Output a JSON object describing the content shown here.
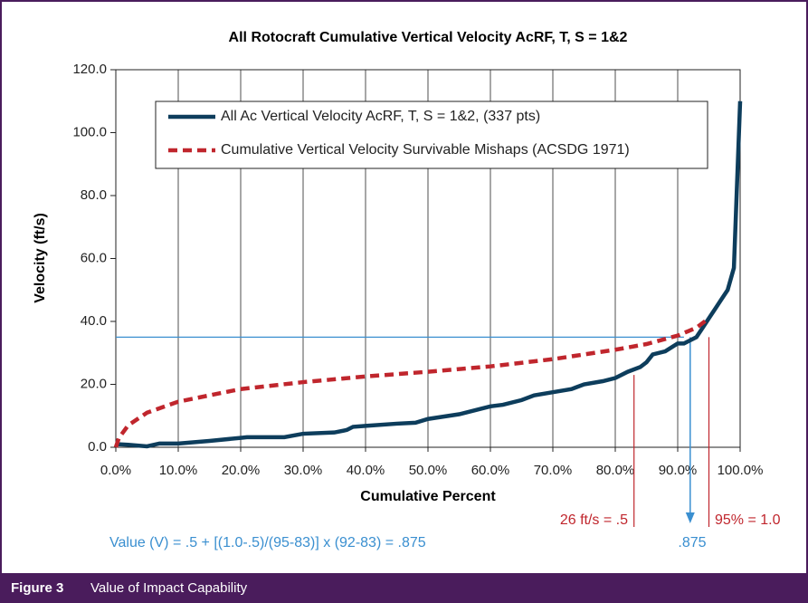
{
  "chart_data": {
    "type": "line",
    "title": "All Rotocraft Cumulative Vertical Velocity AcRF, T, S = 1&2",
    "xlabel": "Cumulative Percent",
    "ylabel": "Velocity (ft/s)",
    "xlim": [
      0,
      100
    ],
    "ylim": [
      0,
      120
    ],
    "xticks": [
      {
        "value": 0,
        "label": "0.0%"
      },
      {
        "value": 10,
        "label": "10.0%"
      },
      {
        "value": 20,
        "label": "20.0%"
      },
      {
        "value": 30,
        "label": "30.0%"
      },
      {
        "value": 40,
        "label": "40.0%"
      },
      {
        "value": 50,
        "label": "50.0%"
      },
      {
        "value": 60,
        "label": "60.0%"
      },
      {
        "value": 70,
        "label": "70.0%"
      },
      {
        "value": 80,
        "label": "80.0%"
      },
      {
        "value": 90,
        "label": "90.0%"
      },
      {
        "value": 100,
        "label": "100.0%"
      }
    ],
    "yticks": [
      {
        "value": 0,
        "label": "0.0"
      },
      {
        "value": 20,
        "label": "20.0"
      },
      {
        "value": 40,
        "label": "40.0"
      },
      {
        "value": 60,
        "label": "60.0"
      },
      {
        "value": 80,
        "label": "80.0"
      },
      {
        "value": 100,
        "label": "100.0"
      },
      {
        "value": 120,
        "label": "120.0"
      }
    ],
    "grid": "x",
    "legend": "top",
    "series": [
      {
        "name": "All Ac Vertical Velocity AcRF, T, S = 1&2, (337 pts)",
        "color": "#0d3d5c",
        "dash": false,
        "x": [
          0,
          2,
          5,
          7,
          10,
          15,
          20,
          21,
          27,
          30,
          35,
          37,
          38,
          40,
          45,
          48,
          50,
          55,
          58,
          60,
          62,
          65,
          67,
          70,
          73,
          75,
          78,
          80,
          82,
          84,
          85,
          86,
          88,
          90,
          91,
          92,
          93,
          94,
          95,
          96,
          97,
          98,
          99,
          100
        ],
        "values": [
          1,
          0.8,
          0.3,
          1.2,
          1.2,
          2,
          3,
          3.2,
          3.2,
          4.3,
          4.7,
          5.5,
          6.5,
          6.8,
          7.5,
          7.8,
          9,
          10.5,
          12,
          13,
          13.5,
          15,
          16.5,
          17.5,
          18.5,
          20,
          21,
          22,
          24,
          25.5,
          27,
          29.5,
          30.5,
          33,
          33,
          34,
          35,
          38,
          41,
          44,
          47,
          50,
          57,
          110
        ]
      },
      {
        "name": "Cumulative Vertical Velocity Survivable Mishaps (ACSDG 1971)",
        "color": "#c0262d",
        "dash": true,
        "x": [
          0,
          0.5,
          2,
          5,
          10,
          15,
          20,
          30,
          40,
          50,
          60,
          70,
          80,
          85,
          90,
          93,
          95
        ],
        "values": [
          0,
          3,
          7,
          11,
          14.5,
          16.5,
          18.5,
          20.7,
          22.5,
          24,
          25.7,
          28,
          31,
          32.8,
          35.5,
          38,
          41
        ]
      }
    ],
    "reference_lines": [
      {
        "kind": "hline",
        "y": 35,
        "x_end": 91,
        "color": "#3a8fd0"
      },
      {
        "kind": "arrow",
        "x": 92,
        "y": 35,
        "color": "#3a8fd0"
      },
      {
        "kind": "vline",
        "x": 83,
        "y": 23,
        "color": "#c0262d"
      },
      {
        "kind": "vline",
        "x": 95,
        "y": 35,
        "color": "#c0262d"
      }
    ],
    "annotations": [
      {
        "text": "26 ft/s = .5",
        "color": "#c0262d"
      },
      {
        "text": "95% = 1.0",
        "color": "#c0262d"
      },
      {
        "text": ".875",
        "color": "#3a8fd0"
      },
      {
        "text": "Value (V) = .5 + [(1.0-.5)/(95-83)] x (92-83) = .875",
        "color": "#3a8fd0"
      }
    ]
  },
  "caption": {
    "label": "Figure 3",
    "text": "Value of Impact Capability"
  }
}
